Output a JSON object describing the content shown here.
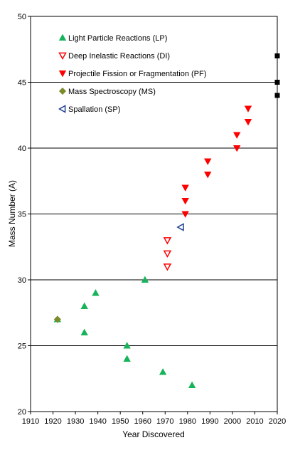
{
  "chart_data": {
    "type": "scatter",
    "xlabel": "Year Discovered",
    "ylabel": "Mass Number (A)",
    "xlim": [
      1910,
      2020
    ],
    "ylim": [
      20,
      50
    ],
    "x_ticks": [
      1910,
      1920,
      1930,
      1940,
      1950,
      1960,
      1970,
      1980,
      1990,
      2000,
      2010,
      2020
    ],
    "y_ticks": [
      20,
      25,
      30,
      35,
      40,
      45,
      50
    ],
    "grid": "horizontal",
    "legend_position": "top-left",
    "series": [
      {
        "name": "Light Particle Reactions (LP)",
        "marker": "triangle-up",
        "color": "#16b35a",
        "fill": true,
        "points": [
          [
            1922,
            27
          ],
          [
            1934,
            26
          ],
          [
            1934,
            28
          ],
          [
            1939,
            29
          ],
          [
            1953,
            24
          ],
          [
            1953,
            25
          ],
          [
            1961,
            30
          ],
          [
            1969,
            23
          ],
          [
            1982,
            22
          ]
        ]
      },
      {
        "name": "Deep Inelastic Reactions (DI)",
        "marker": "triangle-down",
        "color": "#ff0000",
        "fill": false,
        "points": [
          [
            1971,
            31
          ],
          [
            1971,
            32
          ],
          [
            1971,
            33
          ]
        ]
      },
      {
        "name": "Projectile Fission or Fragmentation (PF)",
        "marker": "triangle-down",
        "color": "#ff0000",
        "fill": true,
        "points": [
          [
            1979,
            35
          ],
          [
            1979,
            36
          ],
          [
            1979,
            37
          ],
          [
            1989,
            38
          ],
          [
            1989,
            39
          ],
          [
            2002,
            40
          ],
          [
            2002,
            41
          ],
          [
            2007,
            42
          ],
          [
            2007,
            43
          ]
        ]
      },
      {
        "name": "Mass Spectroscopy (MS)",
        "marker": "diamond",
        "color": "#7a8c2c",
        "fill": true,
        "points": [
          [
            1922,
            27
          ]
        ]
      },
      {
        "name": "Spallation (SP)",
        "marker": "triangle-left",
        "color": "#1c3c8c",
        "fill": false,
        "points": [
          [
            1977,
            34
          ]
        ]
      }
    ],
    "extra_markers": {
      "marker": "square",
      "color": "#000000",
      "points": [
        [
          2020,
          44
        ],
        [
          2020,
          45
        ],
        [
          2020,
          47
        ]
      ]
    }
  }
}
